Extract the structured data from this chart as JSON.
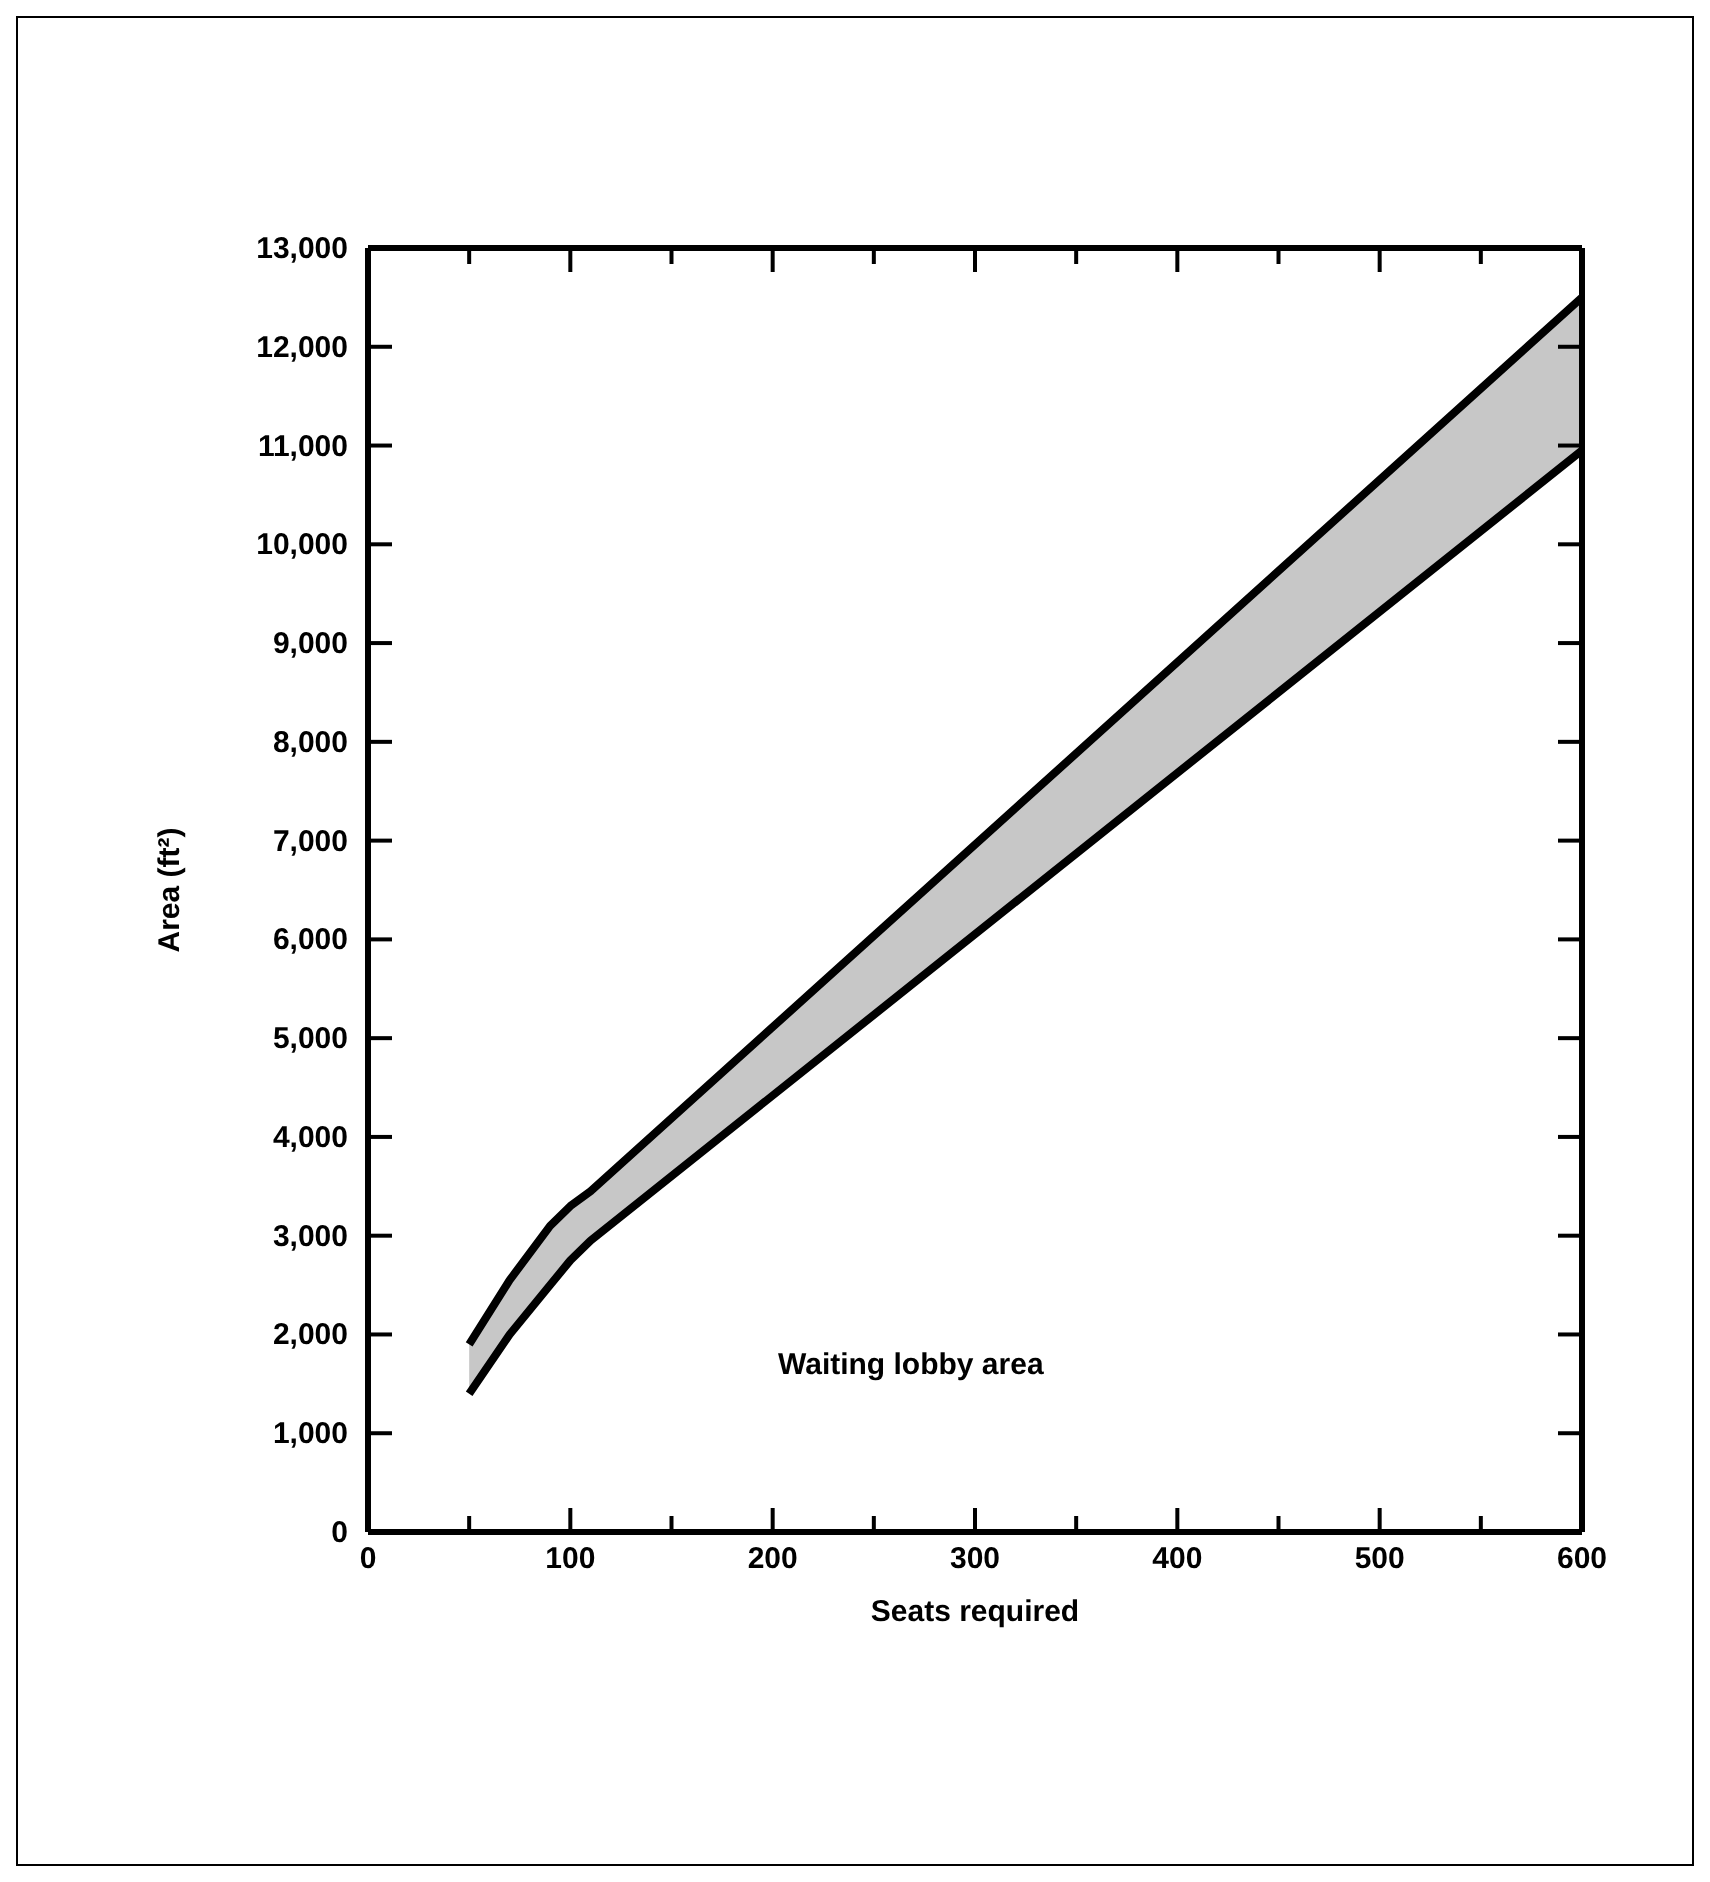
{
  "chart_data": {
    "type": "line",
    "xlabel": "Seats required",
    "ylabel": "Area (ft²)",
    "annotations": [
      "Waiting lobby area"
    ],
    "x": [
      50,
      70,
      90,
      100,
      110,
      600
    ],
    "series": [
      {
        "color": "#000000",
        "values": [
          1900,
          2550,
          3100,
          3300,
          3450,
          12500
        ],
        "lower": [
          1400,
          2000,
          2500,
          2750,
          2950,
          10950
        ],
        "upper": [
          1900,
          2550,
          3100,
          3300,
          3450,
          12500
        ]
      },
      {
        "color": "#000000",
        "values": [
          1400,
          2000,
          2500,
          2750,
          2950,
          10950
        ]
      }
    ],
    "xlim": [
      0,
      600
    ],
    "xticks": [
      0,
      {
        "value": 50,
        "label": null
      },
      100,
      {
        "value": 150,
        "label": null
      },
      200,
      {
        "value": 250,
        "label": null
      },
      300,
      {
        "value": 350,
        "label": null
      },
      400,
      {
        "value": 450,
        "label": null
      },
      500,
      {
        "value": 550,
        "label": null
      },
      600
    ],
    "ylim": [
      0,
      13000
    ],
    "yticks": [
      {
        "value": 0,
        "label": "0"
      },
      {
        "value": 1000,
        "label": "1,000"
      },
      {
        "value": 2000,
        "label": "2,000"
      },
      {
        "value": 3000,
        "label": "3,000"
      },
      {
        "value": 4000,
        "label": "4,000"
      },
      {
        "value": 5000,
        "label": "5,000"
      },
      {
        "value": 6000,
        "label": "6,000"
      },
      {
        "value": 7000,
        "label": "7,000"
      },
      {
        "value": 8000,
        "label": "8,000"
      },
      {
        "value": 9000,
        "label": "9,000"
      },
      {
        "value": 10000,
        "label": "10,000"
      },
      {
        "value": 11000,
        "label": "11,000"
      },
      {
        "value": 12000,
        "label": "12,000"
      },
      {
        "value": 13000,
        "label": "13,000"
      }
    ],
    "grid": false
  }
}
